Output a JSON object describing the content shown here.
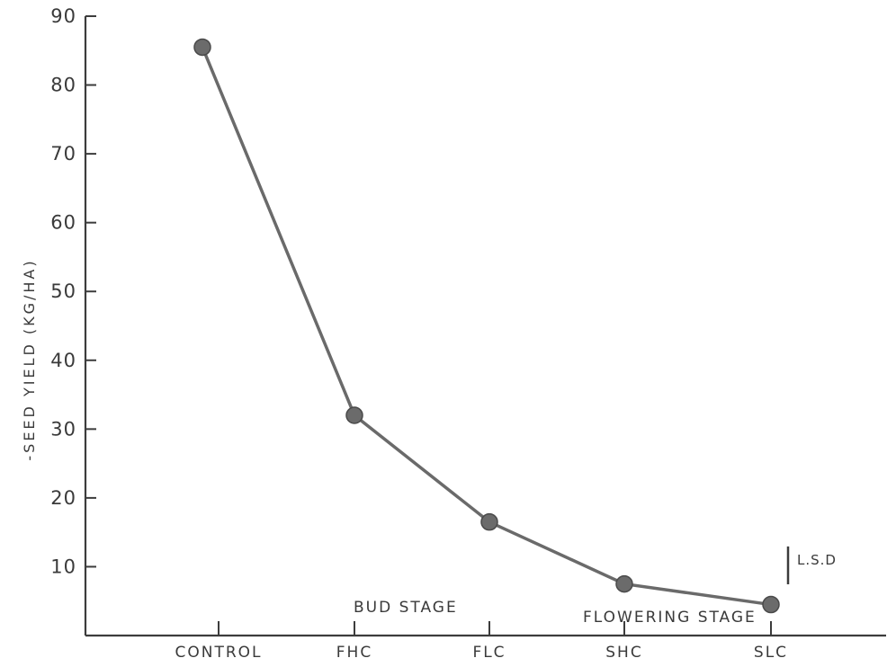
{
  "chart_data": {
    "type": "line",
    "title": "",
    "xlabel": "",
    "ylabel": "-SEED YIELD (KG/HA)",
    "categories": [
      "CONTROL",
      "FHC",
      "FLC",
      "SHC",
      "SLC"
    ],
    "series": [
      {
        "values": [
          85.5,
          32.0,
          16.5,
          7.5,
          4.5
        ]
      }
    ],
    "ylim": [
      0,
      90
    ],
    "yticks": [
      10,
      20,
      30,
      40,
      50,
      60,
      70,
      80,
      90
    ],
    "grid": false,
    "annotations": {
      "bud_stage": "BUD STAGE",
      "flowering_stage": "FLOWERING STAGE",
      "lsd_label": "L.S.D",
      "lsd_value": 5.5
    },
    "colors": {
      "line": "#6a6a6a",
      "marker": "#6b6b6b",
      "axis": "#3c3c3c"
    }
  }
}
